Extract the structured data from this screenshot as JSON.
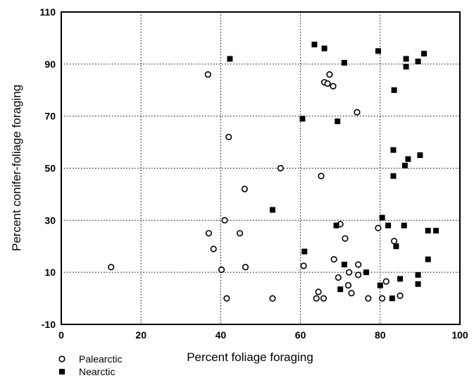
{
  "chart_data": {
    "type": "scatter",
    "xlabel": "Percent foliage foraging",
    "ylabel": "Percent conifer-foliage foraging",
    "xlim": [
      0,
      100
    ],
    "ylim": [
      -10,
      110
    ],
    "xticks": [
      0,
      20,
      40,
      60,
      80,
      100
    ],
    "yticks": [
      -10,
      10,
      30,
      50,
      70,
      90,
      110
    ],
    "grid": true,
    "legend_position": "bottom-left",
    "series": [
      {
        "name": "Palearctic",
        "marker": "open-circle",
        "points": [
          [
            12.5,
            12
          ],
          [
            36.8,
            86
          ],
          [
            37,
            25
          ],
          [
            38.2,
            19
          ],
          [
            40.2,
            11
          ],
          [
            41,
            30
          ],
          [
            41.5,
            0
          ],
          [
            42,
            62
          ],
          [
            44.8,
            25
          ],
          [
            46,
            42
          ],
          [
            46.2,
            12
          ],
          [
            53,
            0
          ],
          [
            55,
            50
          ],
          [
            60.8,
            12.5
          ],
          [
            64,
            0
          ],
          [
            64.5,
            2.5
          ],
          [
            65.2,
            47
          ],
          [
            65.8,
            0
          ],
          [
            66,
            83
          ],
          [
            66.8,
            82.5
          ],
          [
            67.3,
            86
          ],
          [
            68.2,
            81.5
          ],
          [
            68.4,
            15
          ],
          [
            69.5,
            8
          ],
          [
            70,
            28.5
          ],
          [
            71.2,
            23
          ],
          [
            72,
            5
          ],
          [
            72.2,
            10
          ],
          [
            72.8,
            2
          ],
          [
            74.5,
            13
          ],
          [
            74.5,
            9
          ],
          [
            74.2,
            71.5
          ],
          [
            77,
            0
          ],
          [
            79.5,
            27
          ],
          [
            80.5,
            0
          ],
          [
            81.5,
            6.5
          ],
          [
            83.5,
            22
          ],
          [
            85,
            1
          ]
        ]
      },
      {
        "name": "Nearctic",
        "marker": "filled-square",
        "points": [
          [
            42.3,
            92
          ],
          [
            53,
            34
          ],
          [
            60.5,
            69
          ],
          [
            61,
            18
          ],
          [
            63.5,
            97.5
          ],
          [
            66,
            96
          ],
          [
            69,
            28
          ],
          [
            69.3,
            68
          ],
          [
            70,
            3.5
          ],
          [
            71,
            90.5
          ],
          [
            71,
            13
          ],
          [
            76.5,
            10
          ],
          [
            79.5,
            95
          ],
          [
            80,
            5
          ],
          [
            80.5,
            31
          ],
          [
            82,
            28
          ],
          [
            83,
            0
          ],
          [
            83.3,
            47
          ],
          [
            83.3,
            57
          ],
          [
            83.5,
            80
          ],
          [
            84,
            20
          ],
          [
            85,
            7.5
          ],
          [
            86,
            28
          ],
          [
            86.2,
            51
          ],
          [
            86.5,
            92
          ],
          [
            86.5,
            89
          ],
          [
            87,
            53.5
          ],
          [
            89.5,
            91
          ],
          [
            89.5,
            9
          ],
          [
            89.5,
            5.5
          ],
          [
            90,
            55
          ],
          [
            91,
            94
          ],
          [
            92,
            26
          ],
          [
            92,
            15
          ],
          [
            94,
            26
          ]
        ]
      }
    ]
  }
}
